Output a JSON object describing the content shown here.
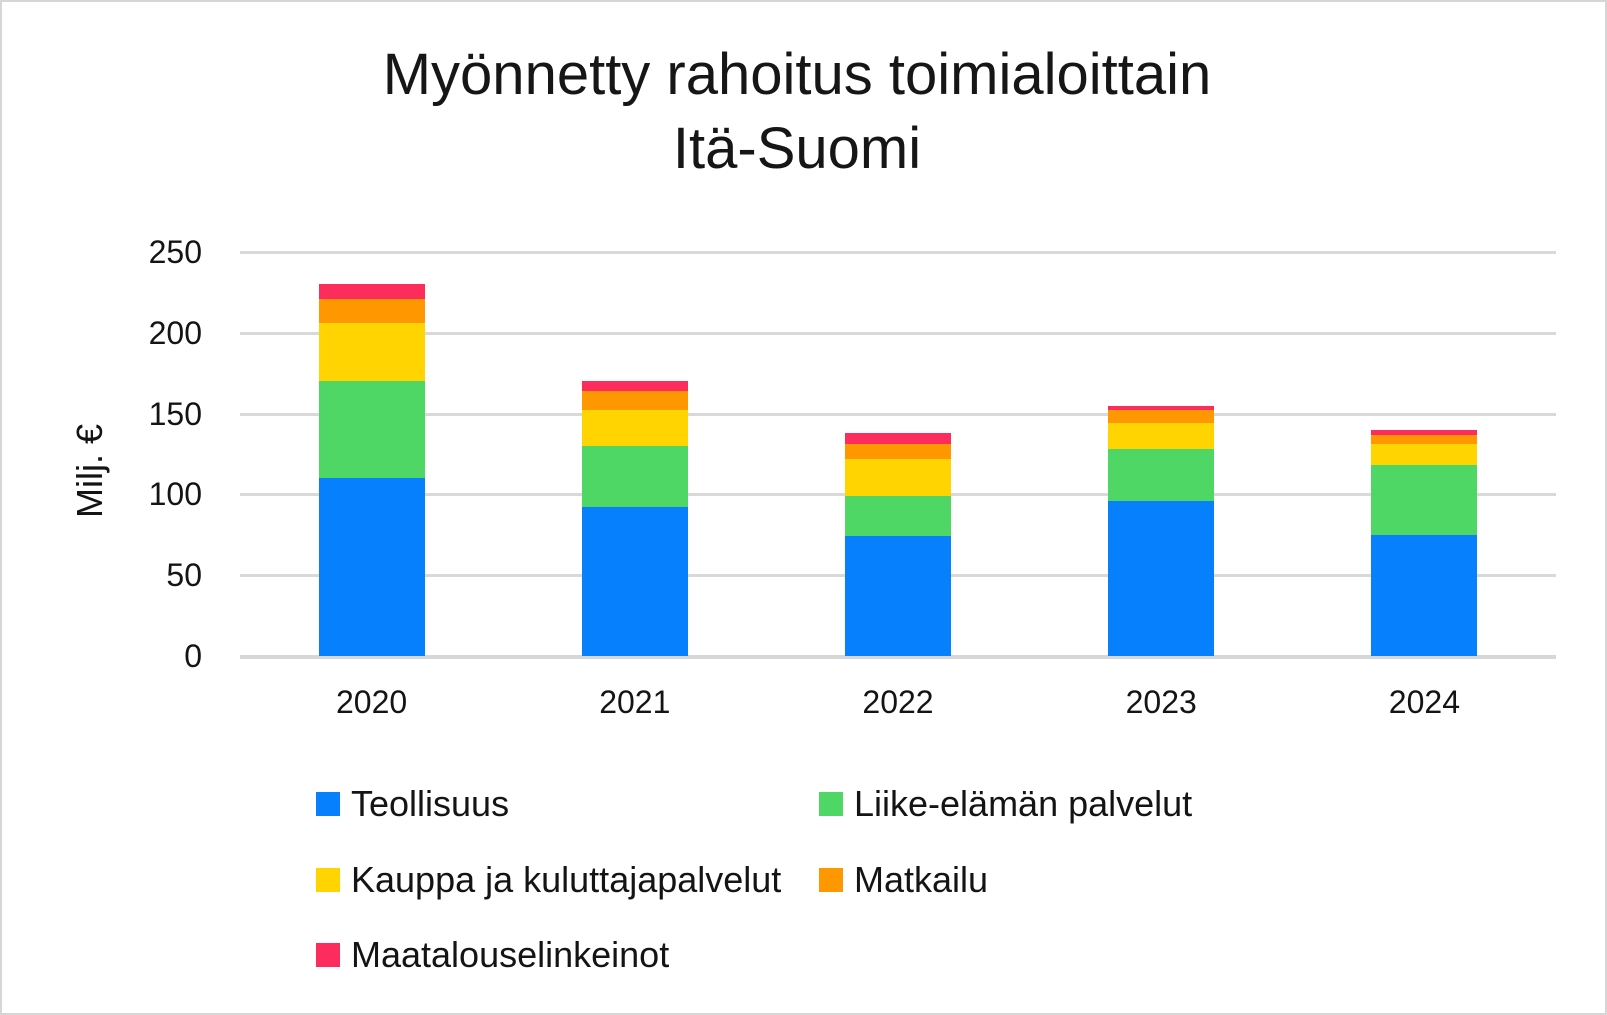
{
  "title": {
    "line1": "Myönnetty rahoitus toimialoittain",
    "line2": "Itä-Suomi"
  },
  "y_axis": {
    "label": "Milj. €",
    "tick_labels": [
      "250",
      "200",
      "150",
      "100",
      "50",
      "0"
    ]
  },
  "x_axis": {
    "tick_labels": [
      "2020",
      "2021",
      "2022",
      "2023",
      "2024"
    ]
  },
  "colors": {
    "gridline": "#d9d9d9",
    "text": "#141414"
  },
  "chart_data": {
    "type": "bar",
    "stacked": true,
    "title": "Myönnetty rahoitus toimialoittain Itä-Suomi",
    "xlabel": "",
    "ylabel": "Milj. €",
    "ylim": [
      0,
      250
    ],
    "y_tick_step": 50,
    "grid": true,
    "legend_position": "bottom",
    "categories": [
      "2020",
      "2021",
      "2022",
      "2023",
      "2024"
    ],
    "series": [
      {
        "name": "Teollisuus",
        "color": "#0680fc",
        "values": [
          110,
          92,
          74,
          96,
          75
        ]
      },
      {
        "name": "Liike-elämän palvelut",
        "color": "#4fd765",
        "values": [
          60,
          38,
          25,
          32,
          43
        ]
      },
      {
        "name": "Kauppa ja kuluttajapalvelut",
        "color": "#ffd400",
        "values": [
          36,
          22,
          23,
          16,
          13
        ]
      },
      {
        "name": "Matkailu",
        "color": "#ff9800",
        "values": [
          15,
          12,
          9,
          8,
          6
        ]
      },
      {
        "name": "Maatalouselinkeinot",
        "color": "#fc2d5c",
        "values": [
          9,
          6,
          7,
          3,
          3
        ]
      }
    ],
    "totals": [
      230,
      170,
      138,
      155,
      140
    ]
  }
}
